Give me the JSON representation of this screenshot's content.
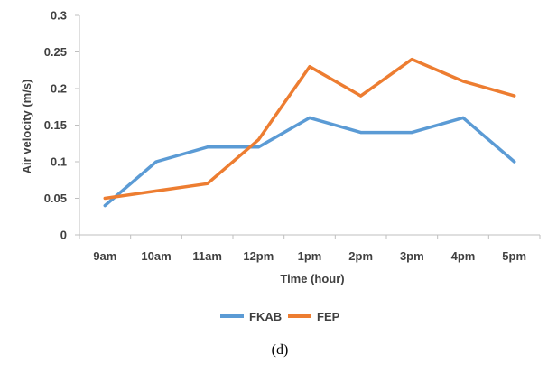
{
  "chart_data": {
    "type": "line",
    "categories": [
      "9am",
      "10am",
      "11am",
      "12pm",
      "1pm",
      "2pm",
      "3pm",
      "4pm",
      "5pm"
    ],
    "series": [
      {
        "name": "FKAB",
        "color": "#5B9BD5",
        "values": [
          0.04,
          0.1,
          0.12,
          0.12,
          0.16,
          0.14,
          0.14,
          0.16,
          0.1
        ]
      },
      {
        "name": "FEP",
        "color": "#ED7D31",
        "values": [
          0.05,
          0.06,
          0.07,
          0.13,
          0.23,
          0.19,
          0.24,
          0.21,
          0.19
        ]
      }
    ],
    "xlabel": "Time (hour)",
    "ylabel": "Air velocity (m/s)",
    "ylim": [
      0,
      0.3
    ],
    "yticks": [
      "0",
      "0.05",
      "0.1",
      "0.15",
      "0.2",
      "0.25",
      "0.3"
    ],
    "grid": false,
    "legend": "bottom"
  },
  "caption": "(d)"
}
